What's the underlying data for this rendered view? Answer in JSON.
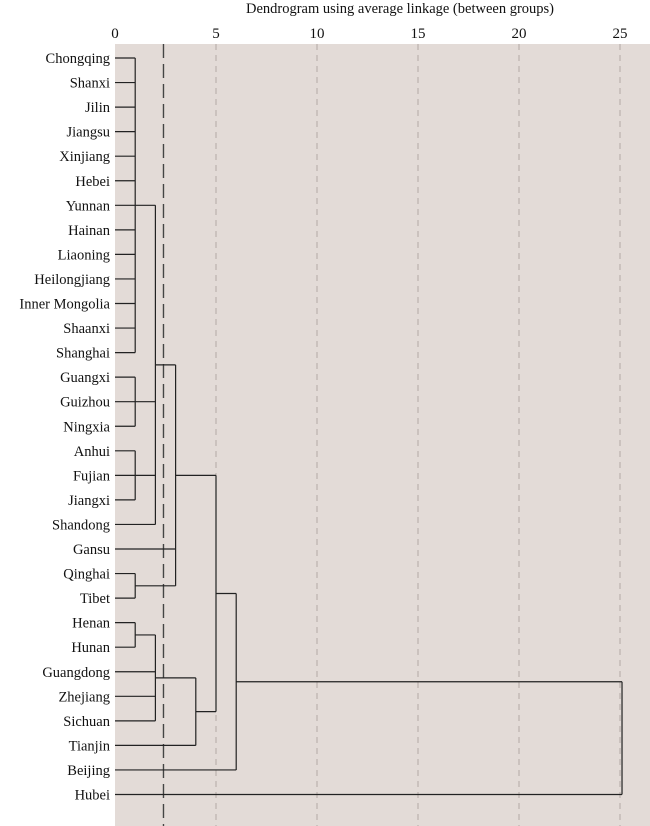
{
  "chart_data": {
    "type": "dendrogram",
    "title": "Dendrogram using average linkage (between groups)",
    "xlim": [
      0,
      25
    ],
    "xticks": [
      0,
      5,
      10,
      15,
      20,
      25
    ],
    "grid": "vertical dashed",
    "cut_line": 2.4,
    "colors": {
      "background": "#e3dbd7",
      "line": "#222222",
      "grid": "#b3aaa6",
      "cut": "#444444"
    },
    "leaves": [
      "Chongqing",
      "Shanxi",
      "Jilin",
      "Jiangsu",
      "Xinjiang",
      "Hebei",
      "Yunnan",
      "Hainan",
      "Liaoning",
      "Heilongjiang",
      "Inner Mongolia",
      "Shaanxi",
      "Shanghai",
      "Guangxi",
      "Guizhou",
      "Ningxia",
      "Anhui",
      "Fujian",
      "Jiangxi",
      "Shandong",
      "Gansu",
      "Qinghai",
      "Tibet",
      "Henan",
      "Hunan",
      "Guangdong",
      "Zhejiang",
      "Sichuan",
      "Tianjin",
      "Beijing",
      "Hubei"
    ],
    "merges": [
      {
        "children": [
          "Chongqing",
          "Shanxi",
          "Jilin",
          "Jiangsu",
          "Xinjiang",
          "Hebei",
          "Yunnan",
          "Hainan",
          "Liaoning",
          "Heilongjiang",
          "Inner Mongolia",
          "Shaanxi",
          "Shanghai"
        ],
        "height": 1.0,
        "id": "A"
      },
      {
        "children": [
          "Guangxi",
          "Guizhou",
          "Ningxia"
        ],
        "height": 1.0,
        "id": "B"
      },
      {
        "children": [
          "Anhui",
          "Fujian",
          "Jiangxi"
        ],
        "height": 1.0,
        "id": "C"
      },
      {
        "children": [
          "Qinghai",
          "Tibet"
        ],
        "height": 1.0,
        "id": "D"
      },
      {
        "children": [
          "Henan",
          "Hunan"
        ],
        "height": 1.0,
        "id": "E"
      },
      {
        "children": [
          "A",
          "B",
          "C",
          "Shandong"
        ],
        "height": 2.0,
        "id": "F"
      },
      {
        "children": [
          "F",
          "Gansu",
          "D"
        ],
        "height": 3.0,
        "id": "G"
      },
      {
        "children": [
          "E",
          "Guangdong",
          "Zhejiang",
          "Sichuan"
        ],
        "height": 2.0,
        "id": "H"
      },
      {
        "children": [
          "H",
          "Tianjin"
        ],
        "height": 4.0,
        "id": "I"
      },
      {
        "children": [
          "G",
          "I"
        ],
        "height": 5.0,
        "id": "J"
      },
      {
        "children": [
          "J",
          "Beijing"
        ],
        "height": 6.0,
        "id": "K"
      },
      {
        "children": [
          "K",
          "Hubei"
        ],
        "height": 25.1,
        "id": "L"
      }
    ]
  }
}
